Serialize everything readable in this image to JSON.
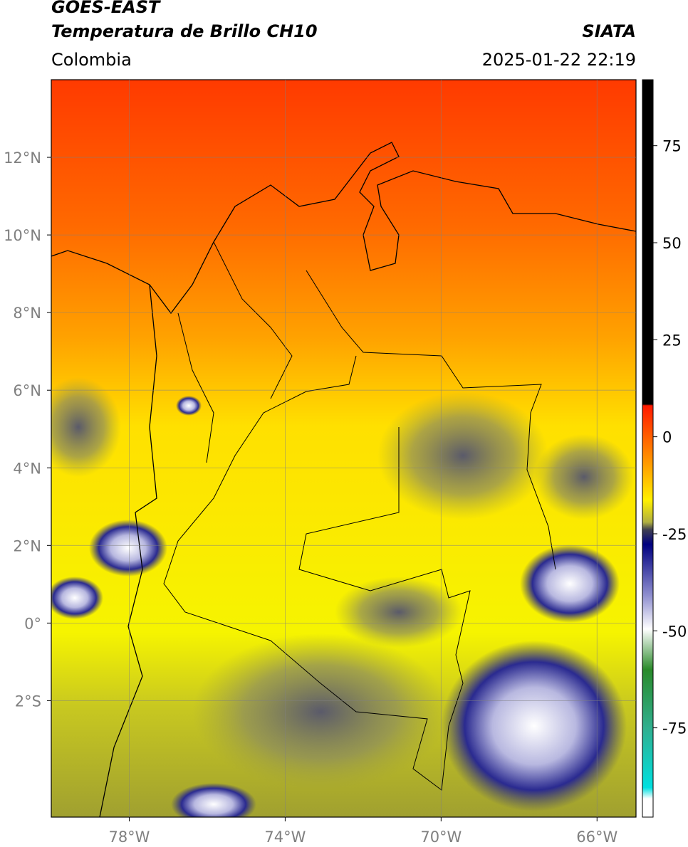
{
  "header": {
    "title_line1": "GOES-EAST",
    "title_line2": "Temperatura de Brillo CH10",
    "subtitle": "Colombia",
    "source": "SIATA",
    "timestamp": "2025-01-22 22:19"
  },
  "map": {
    "lon_range": [
      -80,
      -65
    ],
    "lat_range": [
      -5,
      14
    ],
    "lat_ticks": [
      {
        "value": 12,
        "label": "12°N"
      },
      {
        "value": 10,
        "label": "10°N"
      },
      {
        "value": 8,
        "label": "8°N"
      },
      {
        "value": 6,
        "label": "6°N"
      },
      {
        "value": 4,
        "label": "4°N"
      },
      {
        "value": 2,
        "label": "2°N"
      },
      {
        "value": 0,
        "label": "0°"
      },
      {
        "value": -2,
        "label": "2°S"
      }
    ],
    "lon_ticks": [
      {
        "value": -78,
        "label": "78°W"
      },
      {
        "value": -74,
        "label": "74°W"
      },
      {
        "value": -70,
        "label": "70°W"
      },
      {
        "value": -66,
        "label": "66°W"
      }
    ]
  },
  "colorbar": {
    "lim": [
      -98,
      92
    ],
    "ticks": [
      75,
      50,
      25,
      0,
      -25,
      -50,
      -75
    ]
  }
}
